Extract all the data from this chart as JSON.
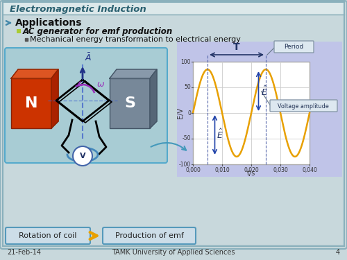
{
  "title": "Electromagnetic Induction",
  "slide_bg": "#c8d8dc",
  "header_bg": "#dce8ea",
  "bullet1": "Applications",
  "bullet2": "AC generator for emf production",
  "bullet3": "Mechanical energy transformation to electrical energy",
  "footer_date": "21-Feb-14",
  "footer_center": "TAMK University of Applied Sciences",
  "footer_page": "4",
  "plot_xlabel": "t/s",
  "plot_ylabel": "E/V",
  "wave_color": "#E8A000",
  "wave_freq": 50,
  "wave_amplitude": 85,
  "box_bottom_left": "Rotation of coil",
  "box_bottom_right": "Production of emf"
}
